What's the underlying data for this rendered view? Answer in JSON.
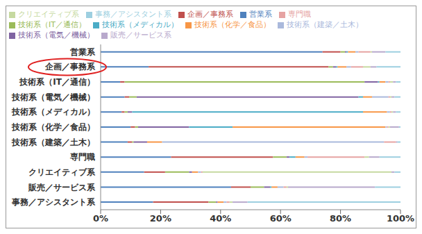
{
  "chart_data": {
    "type": "bar",
    "orientation": "horizontal",
    "stacked": true,
    "grid": false,
    "legend": "top",
    "categories": [
      "営業系",
      "企画／事務系",
      "技術系（IT／通信）",
      "技術系（電気／機械）",
      "技術系（メディカル）",
      "技術系（化学／食品）",
      "技術系（建築／土木）",
      "専門職",
      "クリエイティブ系",
      "販売／サービス系",
      "事務／アシスタント系"
    ],
    "xlim": [
      0,
      100
    ],
    "xticks": [
      {
        "value": 0,
        "label": "0%"
      },
      {
        "value": 20,
        "label": "20%"
      },
      {
        "value": 40,
        "label": "40%"
      },
      {
        "value": 60,
        "label": "60%"
      },
      {
        "value": 80,
        "label": "80%"
      },
      {
        "value": 100,
        "label": "100%"
      }
    ],
    "series": [
      {
        "name": "営業系",
        "color": "#4f81bd",
        "values": [
          74,
          16,
          6.5,
          8,
          7,
          10,
          9,
          23.5,
          14.5,
          43.5,
          17.5
        ]
      },
      {
        "name": "企画／事務系",
        "color": "#c0504d",
        "values": [
          6,
          60,
          1.5,
          1.5,
          1,
          1.5,
          1.5,
          34,
          7,
          6.5,
          18.5
        ]
      },
      {
        "name": "技術系（IT／通信）",
        "color": "#9bbb59",
        "values": [
          1.5,
          1.5,
          80,
          2.5,
          1,
          1,
          0.5,
          4.5,
          8,
          4.5,
          2.5
        ]
      },
      {
        "name": "技術系（電気／機械）",
        "color": "#8064a2",
        "values": [
          0.5,
          1,
          4.5,
          74,
          1.5,
          17,
          4.5,
          1,
          1,
          2,
          0.5
        ]
      },
      {
        "name": "技術系（メディカル）",
        "color": "#4bacc6",
        "values": [
          0.5,
          0.5,
          0.5,
          1.5,
          77,
          14.5,
          0,
          2,
          0,
          0.5,
          0
        ]
      },
      {
        "name": "技術系（化学／食品）",
        "color": "#f79646",
        "values": [
          2.5,
          3,
          2,
          3,
          8,
          51,
          5,
          3,
          2,
          2,
          2
        ]
      },
      {
        "name": "技術系（建築／土木）",
        "color": "#aab9dc",
        "values": [
          1,
          1.5,
          1,
          5.5,
          1,
          0.5,
          74,
          1,
          1,
          2,
          1
        ]
      },
      {
        "name": "専門職",
        "color": "#e6a3a2",
        "values": [
          4,
          4,
          0.5,
          0.5,
          0.5,
          0.5,
          4,
          19,
          0.5,
          1,
          1
        ]
      },
      {
        "name": "クリエイティブ系",
        "color": "#c6d9a0",
        "values": [
          0.5,
          2.5,
          1,
          0.5,
          0.5,
          0.5,
          0,
          1.5,
          63,
          0.5,
          1
        ]
      },
      {
        "name": "販売／サービス系",
        "color": "#b8a9cc",
        "values": [
          4.5,
          2,
          1,
          1,
          1,
          3,
          0.5,
          3.5,
          1,
          29,
          5
        ]
      },
      {
        "name": "事務／アシスタント系",
        "color": "#9dcfe0",
        "values": [
          5,
          8,
          1.5,
          2,
          1.5,
          0.5,
          1,
          7,
          2,
          8.5,
          51
        ]
      }
    ]
  }
}
